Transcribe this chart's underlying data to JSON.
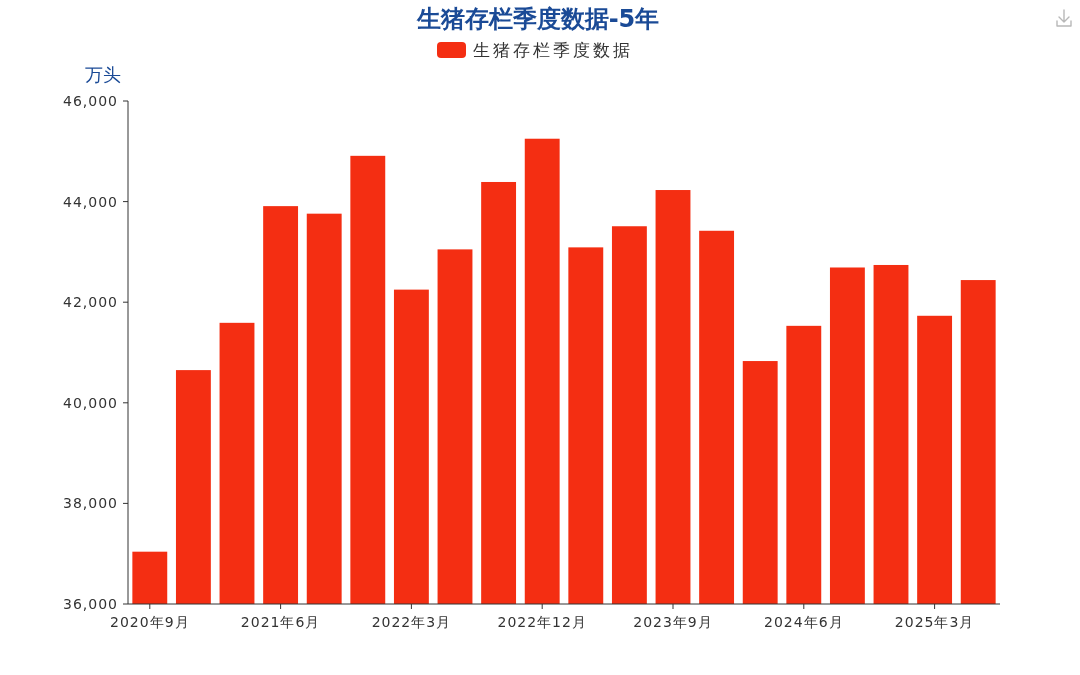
{
  "chart_data": {
    "type": "bar",
    "title": "生猪存栏季度数据-5年",
    "ylabel": "万头",
    "legend": "top",
    "categories": [
      "2020年9月",
      null,
      null,
      "2021年6月",
      null,
      null,
      "2022年3月",
      null,
      null,
      "2022年12月",
      null,
      null,
      "2023年9月",
      null,
      null,
      "2024年6月",
      null,
      null,
      "2025年3月",
      null
    ],
    "series": [
      {
        "name": "生猪存栏季度数据",
        "color": "#f42e12",
        "values": [
          37040,
          40650,
          41590,
          43910,
          43760,
          44910,
          42250,
          43050,
          44390,
          45250,
          43090,
          43510,
          44230,
          43420,
          40830,
          41530,
          42690,
          42740,
          41730,
          42440
        ]
      }
    ],
    "ylim": [
      36000,
      46000
    ],
    "yticks": [
      {
        "value": 36000,
        "label": "36,000"
      },
      {
        "value": 38000,
        "label": "38,000"
      },
      {
        "value": 40000,
        "label": "40,000"
      },
      {
        "value": 42000,
        "label": "42,000"
      },
      {
        "value": 44000,
        "label": "44,000"
      },
      {
        "value": 46000,
        "label": "46,000"
      }
    ]
  }
}
